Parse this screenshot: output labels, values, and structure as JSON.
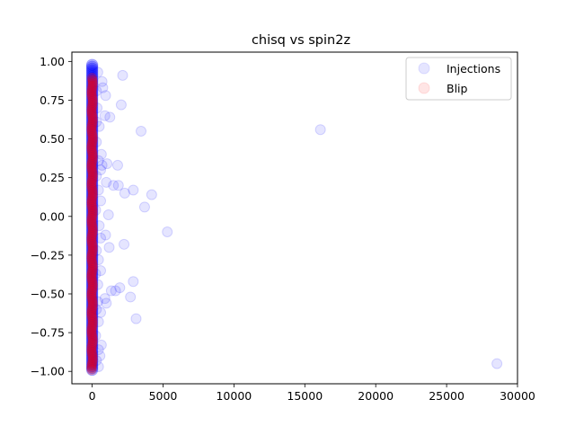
{
  "chart_data": {
    "type": "scatter",
    "title": "chisq vs spin2z",
    "xlabel": "",
    "ylabel": "",
    "xlim": [
      -1430,
      30000
    ],
    "ylim": [
      -1.08,
      1.06
    ],
    "xticks": [
      0,
      5000,
      10000,
      15000,
      20000,
      25000,
      30000
    ],
    "xtick_labels": [
      "0",
      "5000",
      "10000",
      "15000",
      "20000",
      "25000",
      "30000"
    ],
    "yticks": [
      -1.0,
      -0.75,
      -0.5,
      -0.25,
      0.0,
      0.25,
      0.5,
      0.75,
      1.0
    ],
    "ytick_labels": [
      "−1.00",
      "−0.75",
      "−0.50",
      "−0.25",
      "0.00",
      "0.25",
      "0.50",
      "0.75",
      "1.00"
    ],
    "grid": false,
    "legend_position": "top-right",
    "legend": [
      "Injections",
      "Blip"
    ],
    "series": [
      {
        "name": "Injections",
        "color": "#0000ff",
        "alpha": 0.1,
        "points": [
          [
            16100,
            0.56
          ],
          [
            28550,
            -0.95
          ],
          [
            5300,
            -0.1
          ],
          [
            4200,
            0.14
          ],
          [
            3450,
            0.55
          ],
          [
            3700,
            0.06
          ],
          [
            2900,
            0.17
          ],
          [
            2300,
            0.15
          ],
          [
            2050,
            0.72
          ],
          [
            2150,
            0.91
          ],
          [
            1850,
            0.2
          ],
          [
            1800,
            0.33
          ],
          [
            1500,
            0.2
          ],
          [
            1250,
            0.64
          ],
          [
            1150,
            0.01
          ],
          [
            1200,
            -0.2
          ],
          [
            2250,
            -0.18
          ],
          [
            2900,
            -0.42
          ],
          [
            2700,
            -0.52
          ],
          [
            3100,
            -0.66
          ],
          [
            1950,
            -0.46
          ],
          [
            1650,
            -0.48
          ],
          [
            1350,
            -0.48
          ],
          [
            1000,
            -0.56
          ],
          [
            900,
            -0.53
          ],
          [
            950,
            -0.12
          ],
          [
            1000,
            0.22
          ],
          [
            1050,
            0.34
          ],
          [
            950,
            0.78
          ],
          [
            900,
            0.65
          ],
          [
            750,
            0.83
          ],
          [
            700,
            0.87
          ],
          [
            650,
            0.4
          ],
          [
            600,
            0.3
          ],
          [
            700,
            0.33
          ],
          [
            600,
            0.1
          ],
          [
            600,
            -0.14
          ],
          [
            600,
            -0.35
          ],
          [
            600,
            -0.62
          ],
          [
            650,
            -0.83
          ],
          [
            550,
            -0.9
          ],
          [
            450,
            -0.97
          ],
          [
            450,
            -0.86
          ],
          [
            450,
            -0.68
          ],
          [
            400,
            -0.55
          ],
          [
            400,
            -0.44
          ],
          [
            450,
            -0.28
          ],
          [
            500,
            -0.06
          ],
          [
            450,
            0.17
          ],
          [
            450,
            0.36
          ],
          [
            500,
            0.58
          ],
          [
            350,
            0.7
          ],
          [
            400,
            0.93
          ],
          [
            300,
            0.61
          ],
          [
            300,
            0.81
          ],
          [
            300,
            0.48
          ],
          [
            300,
            0.26
          ],
          [
            250,
            0.04
          ],
          [
            300,
            -0.22
          ],
          [
            250,
            -0.37
          ],
          [
            300,
            -0.6
          ],
          [
            250,
            -0.77
          ],
          [
            300,
            -0.93
          ]
        ]
      },
      {
        "name": "Blip",
        "color": "#ff0000",
        "alpha": 0.1,
        "points": []
      }
    ]
  }
}
